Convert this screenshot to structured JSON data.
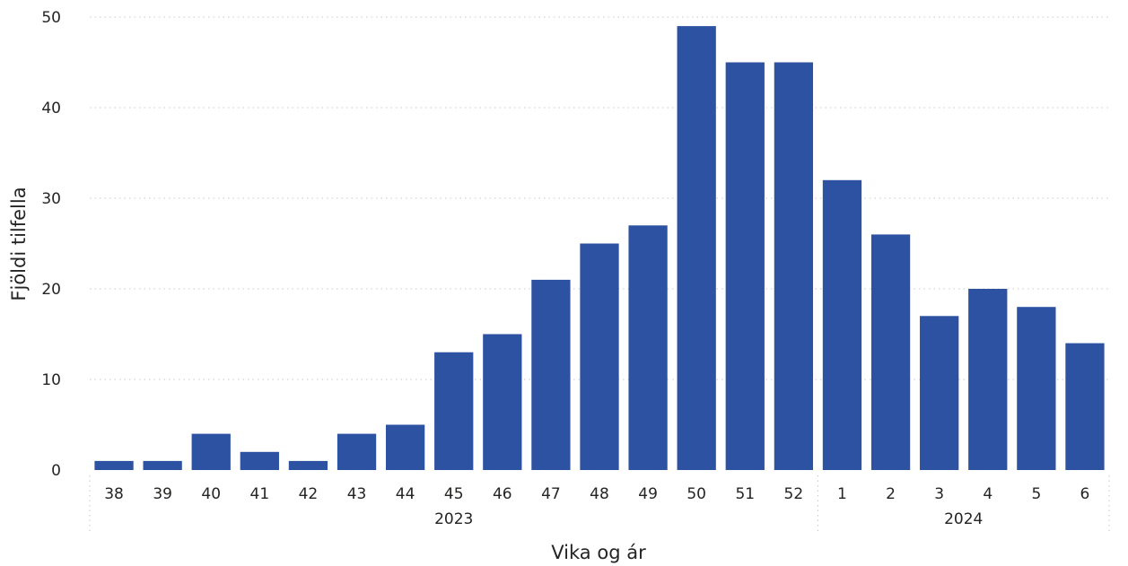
{
  "chart_data": {
    "type": "bar",
    "xlabel": "Vika og ár",
    "ylabel": "Fjöldi tilfella",
    "ylim": [
      0,
      50
    ],
    "yticks": [
      0,
      10,
      20,
      30,
      40,
      50
    ],
    "grid": true,
    "bar_color": "#2E52A2",
    "categories": [
      "38",
      "39",
      "40",
      "41",
      "42",
      "43",
      "44",
      "45",
      "46",
      "47",
      "48",
      "49",
      "50",
      "51",
      "52",
      "1",
      "2",
      "3",
      "4",
      "5",
      "6"
    ],
    "values": [
      1,
      1,
      4,
      2,
      1,
      4,
      5,
      13,
      15,
      21,
      25,
      27,
      49,
      45,
      45,
      32,
      26,
      17,
      20,
      18,
      14
    ],
    "groups": [
      {
        "label": "2023",
        "count": 15
      },
      {
        "label": "2024",
        "count": 6
      }
    ]
  }
}
